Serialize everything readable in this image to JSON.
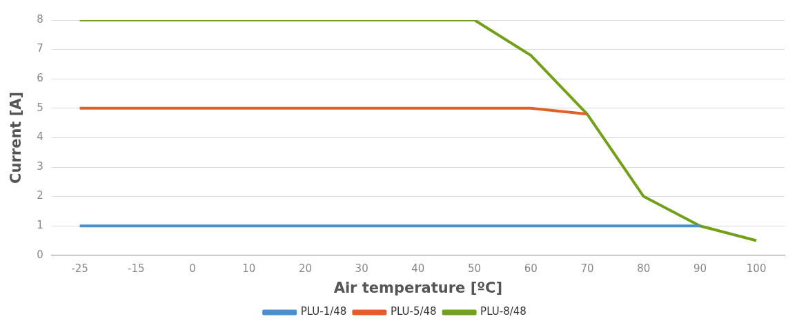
{
  "chart_data": {
    "type": "line",
    "xlabel": "Air temperature [ºC]",
    "ylabel": "Current [A]",
    "categories": [
      "-25",
      "-15",
      "0",
      "10",
      "20",
      "30",
      "40",
      "50",
      "60",
      "70",
      "80",
      "90",
      "100"
    ],
    "series": [
      {
        "name": "PLU-1/48",
        "color": "#4a8fce",
        "values": [
          1,
          1,
          1,
          1,
          1,
          1,
          1,
          1,
          1,
          1,
          1,
          1,
          null
        ]
      },
      {
        "name": "PLU-5/48",
        "color": "#e0602a",
        "values": [
          5,
          5,
          5,
          5,
          5,
          5,
          5,
          5,
          5,
          4.8,
          null,
          null,
          null
        ]
      },
      {
        "name": "PLU-8/48",
        "color": "#73a01a",
        "values": [
          8,
          8,
          8,
          8,
          8,
          8,
          8,
          8,
          6.8,
          4.8,
          2,
          1,
          0.5
        ]
      }
    ],
    "ylim": [
      0,
      8
    ],
    "yticks": [
      0,
      1,
      2,
      3,
      4,
      5,
      6,
      7,
      8
    ],
    "grid": "y",
    "legend": "bottom",
    "marker": "none",
    "line_style": "solid"
  }
}
